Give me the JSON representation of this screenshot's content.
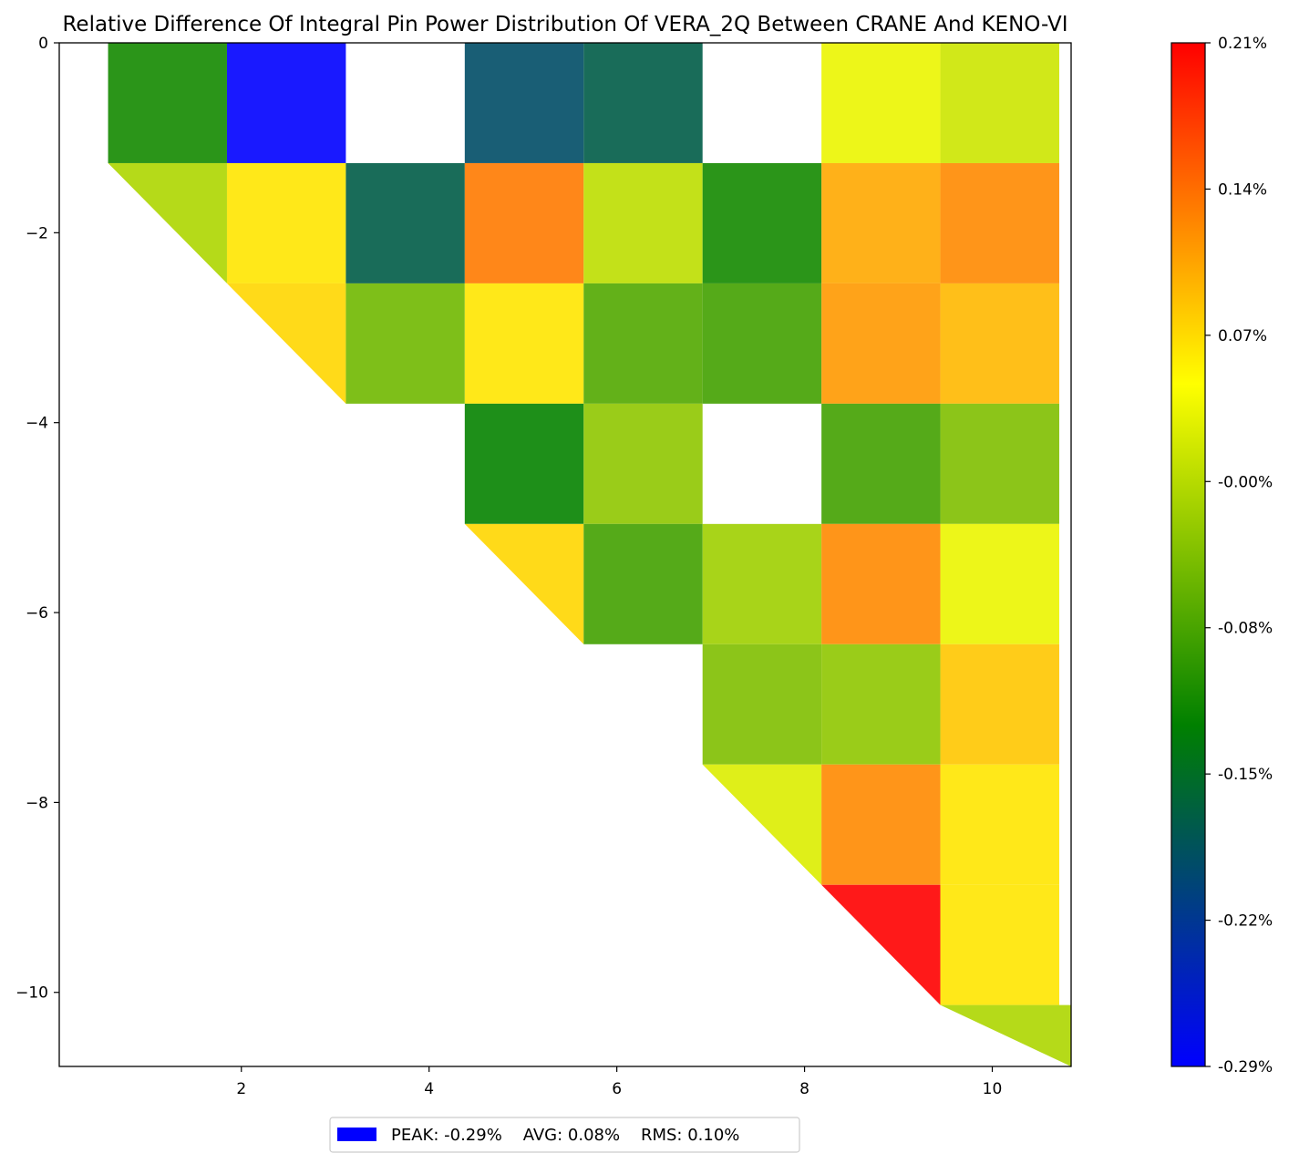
{
  "chart_data": {
    "type": "heatmap",
    "title": "Relative Difference Of Integral Pin Power Distribution Of VERA_2Q Between CRANE And KENO-VI",
    "xlabel": "",
    "ylabel": "",
    "xlim": [
      0.06,
      10.84
    ],
    "ylim": [
      -10.78,
      0
    ],
    "x_ticks": [
      2,
      4,
      6,
      8,
      10
    ],
    "x_tick_labels": [
      "2",
      "4",
      "6",
      "8",
      "10"
    ],
    "y_ticks": [
      0,
      -2,
      -4,
      -6,
      -8,
      -10
    ],
    "y_tick_labels": [
      "0",
      "−2",
      "−4",
      "−6",
      "−8",
      "−10"
    ],
    "grid": false,
    "cell_size": 1.2667,
    "x_start": 0.58,
    "y_start": 0,
    "note_blank_cells": "row 0 col 2, row 0 col 5, row 3 col 5 are blank",
    "cells": [
      {
        "row": 0,
        "col": 0,
        "value": -0.11,
        "shape": "square"
      },
      {
        "row": 0,
        "col": 1,
        "value": -0.29,
        "shape": "square"
      },
      {
        "row": 0,
        "col": 3,
        "value": -0.19,
        "shape": "square"
      },
      {
        "row": 0,
        "col": 4,
        "value": -0.17,
        "shape": "square"
      },
      {
        "row": 0,
        "col": 6,
        "value": 0.03,
        "shape": "square"
      },
      {
        "row": 0,
        "col": 7,
        "value": 0.01,
        "shape": "square"
      },
      {
        "row": 1,
        "col": 0,
        "value": -0.01,
        "shape": "triangle"
      },
      {
        "row": 1,
        "col": 1,
        "value": 0.06,
        "shape": "square"
      },
      {
        "row": 1,
        "col": 2,
        "value": -0.17,
        "shape": "square"
      },
      {
        "row": 1,
        "col": 3,
        "value": 0.13,
        "shape": "square"
      },
      {
        "row": 1,
        "col": 4,
        "value": 0.0,
        "shape": "square"
      },
      {
        "row": 1,
        "col": 5,
        "value": -0.11,
        "shape": "square"
      },
      {
        "row": 1,
        "col": 6,
        "value": 0.1,
        "shape": "square"
      },
      {
        "row": 1,
        "col": 7,
        "value": 0.12,
        "shape": "square"
      },
      {
        "row": 2,
        "col": 1,
        "value": 0.07,
        "shape": "triangle"
      },
      {
        "row": 2,
        "col": 2,
        "value": -0.05,
        "shape": "square"
      },
      {
        "row": 2,
        "col": 3,
        "value": 0.06,
        "shape": "square"
      },
      {
        "row": 2,
        "col": 4,
        "value": -0.07,
        "shape": "square"
      },
      {
        "row": 2,
        "col": 5,
        "value": -0.08,
        "shape": "square"
      },
      {
        "row": 2,
        "col": 6,
        "value": 0.11,
        "shape": "square"
      },
      {
        "row": 2,
        "col": 7,
        "value": 0.09,
        "shape": "square"
      },
      {
        "row": 3,
        "col": 3,
        "value": -0.12,
        "shape": "square"
      },
      {
        "row": 3,
        "col": 4,
        "value": -0.03,
        "shape": "square"
      },
      {
        "row": 3,
        "col": 6,
        "value": -0.08,
        "shape": "square"
      },
      {
        "row": 3,
        "col": 7,
        "value": -0.04,
        "shape": "square"
      },
      {
        "row": 4,
        "col": 3,
        "value": 0.07,
        "shape": "triangle"
      },
      {
        "row": 4,
        "col": 4,
        "value": -0.08,
        "shape": "square"
      },
      {
        "row": 4,
        "col": 5,
        "value": -0.02,
        "shape": "square"
      },
      {
        "row": 4,
        "col": 6,
        "value": 0.12,
        "shape": "square"
      },
      {
        "row": 4,
        "col": 7,
        "value": 0.03,
        "shape": "square"
      },
      {
        "row": 5,
        "col": 5,
        "value": -0.04,
        "shape": "square"
      },
      {
        "row": 5,
        "col": 6,
        "value": -0.03,
        "shape": "square"
      },
      {
        "row": 5,
        "col": 7,
        "value": 0.08,
        "shape": "square"
      },
      {
        "row": 6,
        "col": 5,
        "value": 0.02,
        "shape": "triangle"
      },
      {
        "row": 6,
        "col": 6,
        "value": 0.12,
        "shape": "square"
      },
      {
        "row": 6,
        "col": 7,
        "value": 0.06,
        "shape": "square"
      },
      {
        "row": 7,
        "col": 6,
        "value": 0.21,
        "shape": "triangle"
      },
      {
        "row": 7,
        "col": 7,
        "value": 0.06,
        "shape": "square"
      },
      {
        "row": 8,
        "col": 7,
        "value": -0.01,
        "shape": "triangle-tall"
      }
    ],
    "colorbar": {
      "min": -0.29,
      "max": 0.21,
      "tick_labels": [
        "0.21%",
        "0.14%",
        "0.07%",
        "-0.00%",
        "-0.08%",
        "-0.15%",
        "-0.22%",
        "-0.29%"
      ],
      "colors": [
        "#0000ff",
        "#008000",
        "#ffff00",
        "#ff0000"
      ]
    },
    "legend": {
      "placement": "bottom-center",
      "swatch_color": "#0000ff",
      "text": "PEAK: -0.29%    AVG: 0.08%    RMS: 0.10%"
    }
  }
}
